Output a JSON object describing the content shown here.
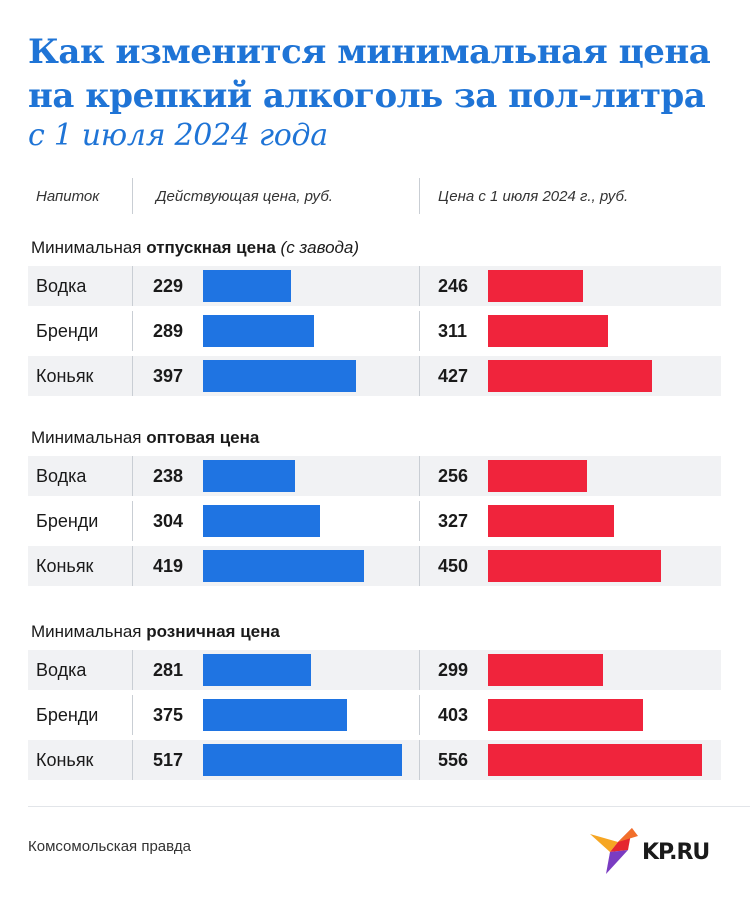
{
  "title": "Как изменится минимальная цена на крепкий алкоголь за пол-литра",
  "subtitle": "с 1 июля 2024 года",
  "columns": {
    "drink": "Напиток",
    "current": "Действующая цена, руб.",
    "new": "Цена с 1 июля 2024 г., руб."
  },
  "colors": {
    "title": "#1f74d6",
    "current_bar": "#1f74e2",
    "new_bar": "#f0243c"
  },
  "sections": [
    {
      "label_prefix": "Минимальная",
      "label_bold": "отпускная цена",
      "label_note": "(с завода)"
    },
    {
      "label_prefix": "Минимальная",
      "label_bold": "оптовая цена",
      "label_note": ""
    },
    {
      "label_prefix": "Минимальная",
      "label_bold": "розничная цена",
      "label_note": ""
    }
  ],
  "chart_data": {
    "type": "bar",
    "title": "Как изменится минимальная цена на крепкий алкоголь за пол-литра",
    "subtitle": "с 1 июля 2024 года",
    "unit": "руб.",
    "categories": [
      "Водка",
      "Бренди",
      "Коньяк"
    ],
    "groups": [
      {
        "name": "Минимальная отпускная цена (с завода)",
        "series": [
          {
            "name": "Действующая цена, руб.",
            "values": [
              229,
              289,
              397
            ]
          },
          {
            "name": "Цена с 1 июля 2024 г., руб.",
            "values": [
              246,
              311,
              427
            ]
          }
        ]
      },
      {
        "name": "Минимальная оптовая цена",
        "series": [
          {
            "name": "Действующая цена, руб.",
            "values": [
              238,
              304,
              419
            ]
          },
          {
            "name": "Цена с 1 июля 2024 г., руб.",
            "values": [
              256,
              327,
              450
            ]
          }
        ]
      },
      {
        "name": "Минимальная розничная цена",
        "series": [
          {
            "name": "Действующая цена, руб.",
            "values": [
              281,
              375,
              517
            ]
          },
          {
            "name": "Цена с 1 июля 2024 г., руб.",
            "values": [
              299,
              403,
              556
            ]
          }
        ]
      }
    ],
    "xlim": [
      0,
      556
    ]
  },
  "footer": {
    "source": "Комсомольская правда",
    "logo_text": "KP.RU"
  }
}
